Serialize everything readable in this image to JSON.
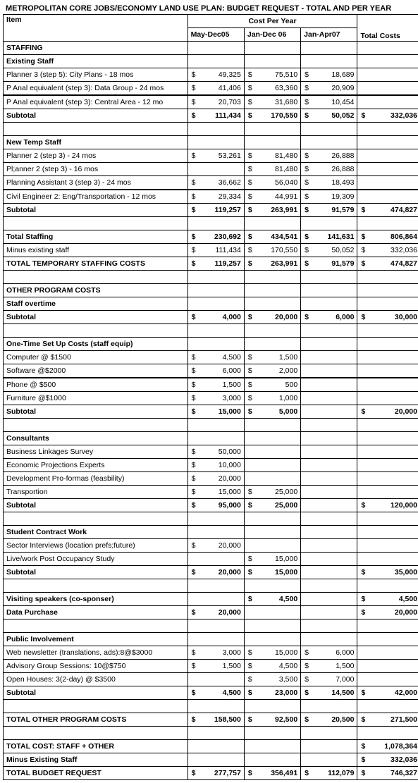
{
  "title": "METROPOLITAN CORE JOBS/ECONOMY LAND USE PLAN: BUDGET REQUEST - TOTAL AND PER YEAR",
  "headers": {
    "item": "Item",
    "cost_per_year": "Cost Per Year",
    "p1": "May-Dec05",
    "p2": "Jan-Dec 06",
    "p3": "Jan-Apr07",
    "total": "Total Costs"
  },
  "rows": [
    {
      "t": "sec",
      "label": "STAFFING"
    },
    {
      "t": "sec",
      "label": "Existing Staff"
    },
    {
      "t": "r",
      "label": "Planner 3 (step 5): City Plans - 18 mos",
      "v": [
        "49,325",
        "75,510",
        "18,689",
        ""
      ]
    },
    {
      "t": "r",
      "label": "P Anal equivalent (step 3): Data Group - 24 mos",
      "v": [
        "41,406",
        "63,360",
        "20,909",
        ""
      ],
      "thick": true
    },
    {
      "t": "r",
      "label": "P Anal equivalent (step 3): Central Area - 12 mo",
      "v": [
        "20,703",
        "31,680",
        "10,454",
        ""
      ]
    },
    {
      "t": "b",
      "label": "Subtotal",
      "v": [
        "111,434",
        "170,550",
        "50,052",
        "332,036"
      ]
    },
    {
      "t": "blank"
    },
    {
      "t": "sec",
      "label": "New Temp Staff"
    },
    {
      "t": "r",
      "label": "Planner 2 (step 3) - 24 mos",
      "v": [
        "53,261",
        "81,480",
        "26,888",
        ""
      ]
    },
    {
      "t": "r",
      "label": "Pl;anner 2 (step 3) - 16 mos",
      "v": [
        "",
        "81,480",
        "26,888",
        ""
      ]
    },
    {
      "t": "r",
      "label": "Planning Assistant 3 (step 3) - 24 mos",
      "v": [
        "36,662",
        "56,040",
        "18,493",
        ""
      ],
      "thick": true
    },
    {
      "t": "r",
      "label": "Civil Engineer 2: Eng/Transportation - 12 mos",
      "v": [
        "29,334",
        "44,991",
        "19,309",
        ""
      ]
    },
    {
      "t": "b",
      "label": "Subtotal",
      "v": [
        "119,257",
        "263,991",
        "91,579",
        "474,827"
      ]
    },
    {
      "t": "blank"
    },
    {
      "t": "b",
      "label": "Total Staffing",
      "v": [
        "230,692",
        "434,541",
        "141,631",
        "806,864"
      ]
    },
    {
      "t": "r",
      "label": "Minus existing staff",
      "v": [
        "111,434",
        "170,550",
        "50,052",
        "332,036"
      ]
    },
    {
      "t": "b",
      "label": "TOTAL TEMPORARY STAFFING COSTS",
      "v": [
        "119,257",
        "263,991",
        "91,579",
        "474,827"
      ]
    },
    {
      "t": "blank"
    },
    {
      "t": "sec",
      "label": "OTHER PROGRAM COSTS"
    },
    {
      "t": "sec",
      "label": "Staff overtime"
    },
    {
      "t": "b",
      "label": "Subtotal",
      "v": [
        "4,000",
        "20,000",
        "6,000",
        "30,000"
      ]
    },
    {
      "t": "blank"
    },
    {
      "t": "sec",
      "label": "One-Time Set Up Costs (staff equip)"
    },
    {
      "t": "r",
      "label": "Computer @ $1500",
      "v": [
        "4,500",
        "1,500",
        "",
        ""
      ]
    },
    {
      "t": "r",
      "label": "Software @$2000",
      "v": [
        "6,000",
        "2,000",
        "",
        ""
      ],
      "thick": true
    },
    {
      "t": "r",
      "label": "Phone @ $500",
      "v": [
        "1,500",
        "500",
        "",
        ""
      ]
    },
    {
      "t": "r",
      "label": "Furniture @$1000",
      "v": [
        "3,000",
        "1,000",
        "",
        ""
      ]
    },
    {
      "t": "b",
      "label": "Subtotal",
      "v": [
        "15,000",
        "5,000",
        "",
        "20,000"
      ]
    },
    {
      "t": "blank"
    },
    {
      "t": "sec",
      "label": "Consultants"
    },
    {
      "t": "r",
      "label": "Business Linkages Survey",
      "v": [
        "50,000",
        "",
        "",
        ""
      ]
    },
    {
      "t": "r",
      "label": "Economic Projections Experts",
      "v": [
        "10,000",
        "",
        "",
        ""
      ]
    },
    {
      "t": "r",
      "label": "Development Pro-formas (feasbility)",
      "v": [
        "20,000",
        "",
        "",
        ""
      ]
    },
    {
      "t": "r",
      "label": "Transportion",
      "v": [
        "15,000",
        "25,000",
        "",
        ""
      ]
    },
    {
      "t": "b",
      "label": "Subtotal",
      "v": [
        "95,000",
        "25,000",
        "",
        "120,000"
      ]
    },
    {
      "t": "blank"
    },
    {
      "t": "sec",
      "label": "Student Contract Work"
    },
    {
      "t": "r",
      "label": "Sector Interviews (location prefs;future)",
      "v": [
        "20,000",
        "",
        "",
        ""
      ]
    },
    {
      "t": "r",
      "label": "Live/work Post Occupancy Study",
      "v": [
        "",
        "15,000",
        "",
        ""
      ]
    },
    {
      "t": "b",
      "label": "Subtotal",
      "v": [
        "20,000",
        "15,000",
        "",
        "35,000"
      ]
    },
    {
      "t": "blank"
    },
    {
      "t": "b",
      "label": "Visiting speakers (co-sponser)",
      "v": [
        "",
        "4,500",
        "",
        "4,500"
      ]
    },
    {
      "t": "b",
      "label": "Data Purchase",
      "v": [
        "20,000",
        "",
        "",
        "20,000"
      ]
    },
    {
      "t": "blank"
    },
    {
      "t": "sec",
      "label": "Public Involvement"
    },
    {
      "t": "r",
      "label": "Web newsletter (translations, ads):8@$3000",
      "v": [
        "3,000",
        "15,000",
        "6,000",
        ""
      ]
    },
    {
      "t": "r",
      "label": "Advisory Group Sessions: 10@$750",
      "v": [
        "1,500",
        "4,500",
        "1,500",
        ""
      ]
    },
    {
      "t": "r",
      "label": "Open Houses: 3(2-day) @ $3500",
      "v": [
        "",
        "3,500",
        "7,000",
        ""
      ]
    },
    {
      "t": "b",
      "label": "Subtotal",
      "v": [
        "4,500",
        "23,000",
        "14,500",
        "42,000"
      ]
    },
    {
      "t": "blank"
    },
    {
      "t": "b",
      "label": "TOTAL OTHER PROGRAM COSTS",
      "v": [
        "158,500",
        "92,500",
        "20,500",
        "271,500"
      ]
    },
    {
      "t": "blank"
    },
    {
      "t": "b",
      "label": "TOTAL COST: STAFF + OTHER",
      "v": [
        "",
        "",
        "",
        "1,078,364"
      ]
    },
    {
      "t": "b",
      "label": "Minus Existing Staff",
      "v": [
        "",
        "",
        "",
        "332,036"
      ]
    },
    {
      "t": "b",
      "label": "TOTAL BUDGET REQUEST",
      "v": [
        "277,757",
        "356,491",
        "112,079",
        "746,327"
      ]
    }
  ]
}
